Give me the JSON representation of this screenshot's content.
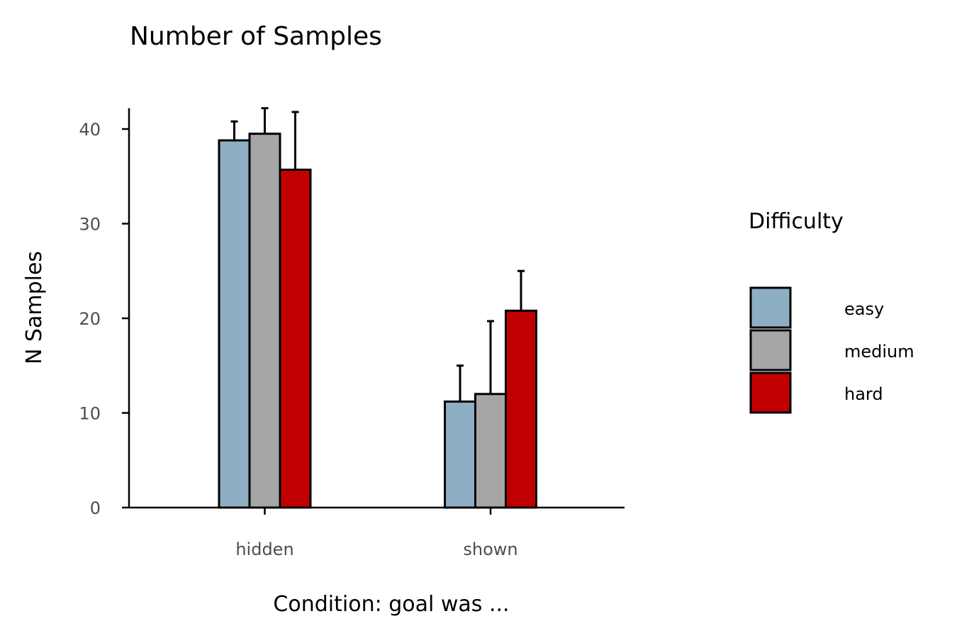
{
  "chart_data": {
    "type": "bar",
    "title": "Number of Samples",
    "xlabel": "Condition: goal was ...",
    "ylabel": "N Samples",
    "categories": [
      "hidden",
      "shown"
    ],
    "series": [
      {
        "name": "easy",
        "values": [
          38.8,
          11.2
        ],
        "error_upper": [
          40.8,
          15.0
        ],
        "color": "#8eafc3"
      },
      {
        "name": "medium",
        "values": [
          39.5,
          12.0
        ],
        "error_upper": [
          42.2,
          19.7
        ],
        "color": "#a6a6a6"
      },
      {
        "name": "hard",
        "values": [
          35.7,
          20.8
        ],
        "error_upper": [
          41.8,
          25.0
        ],
        "color": "#c00000"
      }
    ],
    "yticks": [
      0,
      10,
      20,
      30,
      40
    ],
    "ylim": [
      0,
      42.2
    ],
    "legend": {
      "title": "Difficulty",
      "position": "right"
    },
    "grid": false
  }
}
